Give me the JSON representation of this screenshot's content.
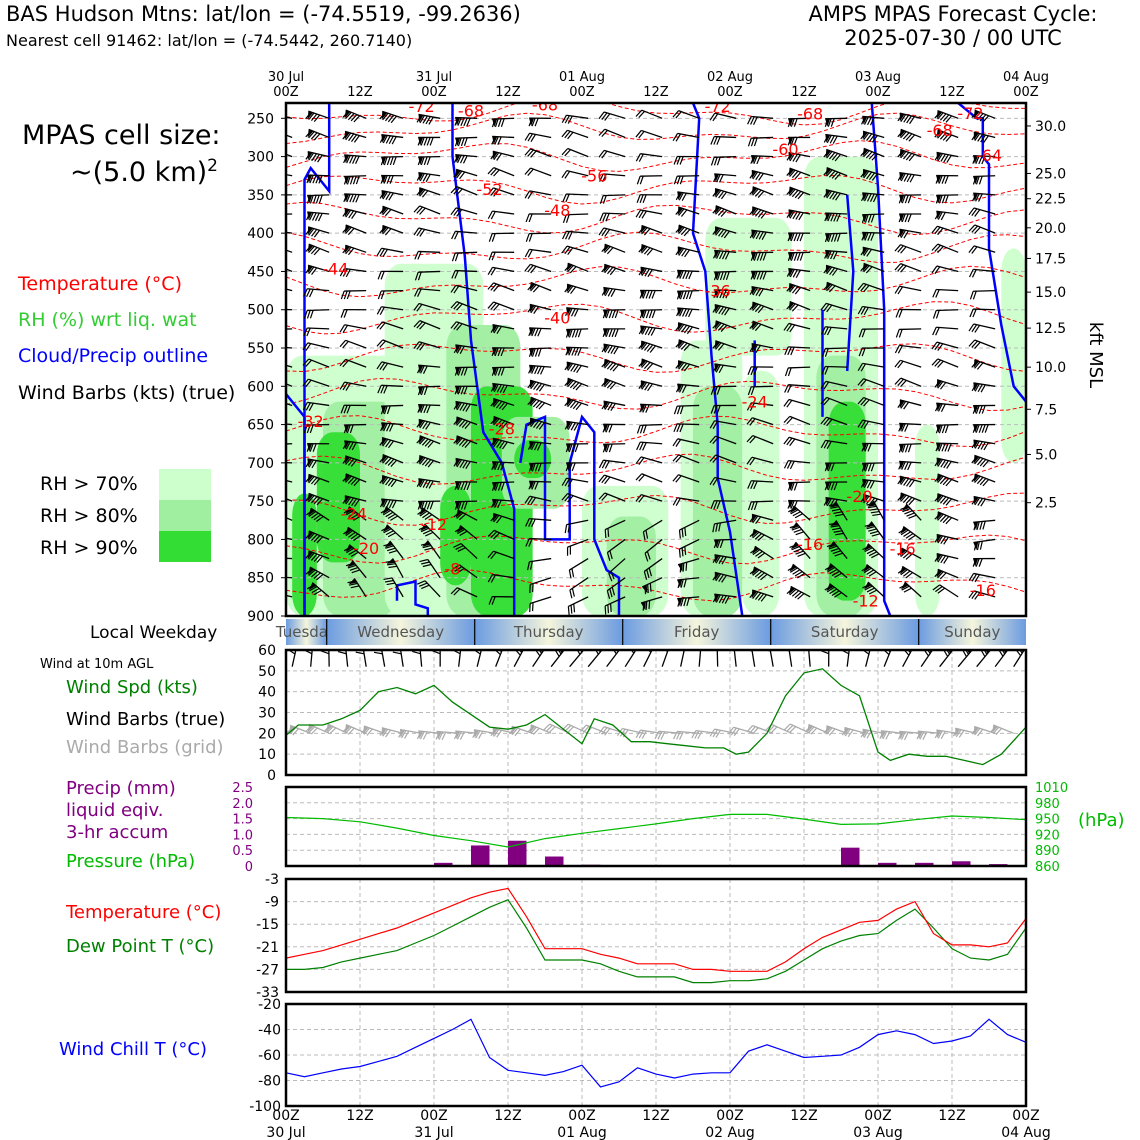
{
  "header": {
    "title_left": "BAS Hudson Mtns: lat/lon = (-74.5519, -99.2636)",
    "subtitle_left": "Nearest cell 91462: lat/lon = (-74.5442, 260.7140)",
    "title_right_1": "AMPS MPAS Forecast Cycle:",
    "title_right_2": "2025-07-30 / 00 UTC"
  },
  "left_panel": {
    "cell_size_1": "MPAS cell size:",
    "cell_size_2": "~(5.0 km)",
    "cell_size_sup": "2",
    "legend_temperature": "Temperature (°C)",
    "legend_rh": "RH (%) wrt liq. wat",
    "legend_cloud": "Cloud/Precip outline",
    "legend_wind": "Wind Barbs (kts) (true)",
    "rh_70": "RH > 70%",
    "rh_80": "RH > 80%",
    "rh_90": "RH > 90%"
  },
  "colors": {
    "temperature": "#ff0000",
    "rh_label": "#33cc33",
    "cloud": "#0000ff",
    "rh70": "#ccffcc",
    "rh80": "#a0eea0",
    "rh90": "#33dd33",
    "wind_speed": "#008000",
    "precip": "#800080",
    "pressure": "#00bb00",
    "dewpoint": "#008000",
    "windchill": "#0000ff",
    "barbs_grid": "#aaaaaa"
  },
  "time_axis": {
    "top_ticks": [
      {
        "l1": "30 Jul",
        "l2": "00Z"
      },
      {
        "l1": "",
        "l2": "12Z"
      },
      {
        "l1": "31 Jul",
        "l2": "00Z"
      },
      {
        "l1": "",
        "l2": "12Z"
      },
      {
        "l1": "01 Aug",
        "l2": "00Z"
      },
      {
        "l1": "",
        "l2": "12Z"
      },
      {
        "l1": "02 Aug",
        "l2": "00Z"
      },
      {
        "l1": "",
        "l2": "12Z"
      },
      {
        "l1": "03 Aug",
        "l2": "00Z"
      },
      {
        "l1": "",
        "l2": "12Z"
      },
      {
        "l1": "04 Aug",
        "l2": "00Z"
      }
    ],
    "bottom_ticks": [
      {
        "l1": "00Z",
        "l2": "30 Jul"
      },
      {
        "l1": "12Z",
        "l2": ""
      },
      {
        "l1": "00Z",
        "l2": "31 Jul"
      },
      {
        "l1": "12Z",
        "l2": ""
      },
      {
        "l1": "00Z",
        "l2": "01 Aug"
      },
      {
        "l1": "12Z",
        "l2": ""
      },
      {
        "l1": "00Z",
        "l2": "02 Aug"
      },
      {
        "l1": "12Z",
        "l2": ""
      },
      {
        "l1": "00Z",
        "l2": "03 Aug"
      },
      {
        "l1": "12Z",
        "l2": ""
      },
      {
        "l1": "00Z",
        "l2": "04 Aug"
      }
    ],
    "weekday_label": "Local Weekday",
    "weekdays": [
      "Tuesday",
      "Wednesday",
      "Thursday",
      "Friday",
      "Saturday",
      "Sunday"
    ]
  },
  "chart_data": [
    {
      "type": "heatmap",
      "name": "cross-section",
      "y_left_label_ticks": [
        "250",
        "300",
        "350",
        "400",
        "450",
        "500",
        "550",
        "600",
        "650",
        "700",
        "750",
        "800",
        "850",
        "900"
      ],
      "y_left_values_hpa": [
        250,
        300,
        350,
        400,
        450,
        500,
        550,
        600,
        650,
        700,
        750,
        800,
        850,
        900
      ],
      "ylim_hpa": [
        900,
        230
      ],
      "y_right_label": "kft MSL",
      "y_right_ticks": [
        {
          "label": "30.0",
          "hpa": 260
        },
        {
          "label": "25.0",
          "hpa": 322
        },
        {
          "label": "22.5",
          "hpa": 355
        },
        {
          "label": "20.0",
          "hpa": 393
        },
        {
          "label": "17.5",
          "hpa": 433
        },
        {
          "label": "15.0",
          "hpa": 477
        },
        {
          "label": "12.5",
          "hpa": 524
        },
        {
          "label": "10.0",
          "hpa": 575
        },
        {
          "label": "7.5",
          "hpa": 630
        },
        {
          "label": "5.0",
          "hpa": 689
        },
        {
          "label": "2.5",
          "hpa": 752
        }
      ],
      "temperature_labels": [
        {
          "text": "-72",
          "hour": 11.0,
          "hpa": 234
        },
        {
          "text": "-68",
          "hour": 15.0,
          "hpa": 240
        },
        {
          "text": "-68",
          "hour": 21.0,
          "hpa": 232
        },
        {
          "text": "-72",
          "hour": 35.0,
          "hpa": 234
        },
        {
          "text": "-68",
          "hour": 42.5,
          "hpa": 244
        },
        {
          "text": "-68",
          "hour": 53.0,
          "hpa": 265
        },
        {
          "text": "-72",
          "hour": 55.5,
          "hpa": 243
        },
        {
          "text": "-60",
          "hour": 40.5,
          "hpa": 290
        },
        {
          "text": "-64",
          "hour": 57.0,
          "hpa": 298
        },
        {
          "text": "-56",
          "hour": 25.0,
          "hpa": 325
        },
        {
          "text": "-52",
          "hour": 16.5,
          "hpa": 342
        },
        {
          "text": "-48",
          "hour": 22.0,
          "hpa": 370
        },
        {
          "text": "-44",
          "hour": 4.0,
          "hpa": 446
        },
        {
          "text": "-36",
          "hour": 35.0,
          "hpa": 475
        },
        {
          "text": "-40",
          "hour": 22.0,
          "hpa": 510
        },
        {
          "text": "-32",
          "hour": 2.0,
          "hpa": 645
        },
        {
          "text": "-24",
          "hour": 38.0,
          "hpa": 620
        },
        {
          "text": "-28",
          "hour": 17.5,
          "hpa": 655
        },
        {
          "text": "-20",
          "hour": 46.5,
          "hpa": 743
        },
        {
          "text": "-24",
          "hour": 5.5,
          "hpa": 766
        },
        {
          "text": "-12",
          "hour": 12.0,
          "hpa": 780
        },
        {
          "text": "-20",
          "hour": 6.5,
          "hpa": 811
        },
        {
          "text": "-16",
          "hour": 42.5,
          "hpa": 806
        },
        {
          "text": "-16",
          "hour": 50.0,
          "hpa": 812
        },
        {
          "text": "-8",
          "hour": 13.5,
          "hpa": 838
        },
        {
          "text": "-16",
          "hour": 56.5,
          "hpa": 866
        },
        {
          "text": "-12",
          "hour": 47.0,
          "hpa": 880
        }
      ]
    },
    {
      "type": "line",
      "name": "wind",
      "title": "Wind at 10m AGL",
      "ylabel_1": "Wind Spd (kts)",
      "ylabel_2": "Wind Barbs (true)",
      "ylabel_3": "Wind Barbs (grid)",
      "ylim": [
        0,
        60
      ],
      "y_ticks": [
        0,
        10,
        20,
        30,
        40,
        50,
        60
      ],
      "x_hours": [
        0,
        1.5,
        3,
        4.5,
        6,
        7.5,
        9,
        10.5,
        12,
        13.5,
        15,
        16.5,
        18,
        19.5,
        21,
        22.5,
        24,
        25.5,
        27,
        28.5,
        30,
        31.5,
        33,
        34.5,
        36,
        37.5,
        39,
        40.5,
        42,
        43.5,
        45,
        46.5,
        48,
        49.5,
        51,
        52.5,
        54,
        55.5,
        57,
        58.5,
        60
      ],
      "x_hours_spd": [
        0,
        1,
        3,
        4.5,
        6,
        7.5,
        9,
        10.5,
        12,
        13.5,
        15,
        16.5,
        18,
        19.5,
        21,
        22.5,
        24,
        25,
        26.5,
        28,
        29.5,
        31,
        32.5,
        34,
        35.5,
        36.5,
        37.5,
        39,
        40.5,
        42,
        43.5,
        45,
        46.5,
        48,
        49,
        50.5,
        52,
        53.5,
        55,
        56.5,
        58,
        60
      ],
      "speed_kts": [
        19,
        24,
        24,
        27,
        31,
        40,
        42,
        39,
        43,
        35,
        29,
        23,
        22,
        24,
        29,
        22,
        15,
        27,
        24,
        16,
        16,
        15,
        14,
        13,
        13,
        10,
        11,
        20,
        38,
        49,
        51,
        43,
        38,
        11,
        7,
        10,
        9,
        9,
        7,
        5,
        10,
        23
      ]
    },
    {
      "type": "bar",
      "name": "precip-pressure",
      "ylabel_1": "Precip (mm)",
      "ylabel_2": "liquid eqiv.",
      "ylabel_3": "3-hr accum",
      "ylabel_4": "Pressure (hPa)",
      "y_right_label": "(hPa)",
      "ylim_precip": [
        0,
        2.5
      ],
      "precip_ticks": [
        "0",
        "0.5",
        "1.0",
        "1.5",
        "2.0",
        "2.5"
      ],
      "pressure_ticks": [
        "860",
        "890",
        "920",
        "950",
        "980",
        "1010"
      ],
      "ylim_pressure": [
        860,
        1010
      ],
      "precip_hours_start": [
        0,
        3,
        6,
        9,
        12,
        15,
        18,
        21,
        24,
        27,
        30,
        33,
        36,
        39,
        42,
        45,
        48,
        51,
        54,
        57
      ],
      "precip_mm": [
        0.02,
        0.02,
        0.03,
        0.02,
        0.1,
        0.65,
        0.8,
        0.3,
        0.04,
        0,
        0,
        0,
        0,
        0,
        0,
        0.58,
        0.1,
        0.1,
        0.15,
        0.06
      ],
      "pressure_hours": [
        0,
        3,
        6,
        9,
        12,
        15,
        18,
        21,
        24,
        27,
        30,
        33,
        36,
        39,
        42,
        45,
        48,
        51,
        54,
        57,
        60
      ],
      "pressure_hpa": [
        952,
        950,
        944,
        932,
        918,
        908,
        896,
        912,
        922,
        931,
        940,
        950,
        958,
        958,
        949,
        939,
        940,
        948,
        955,
        952,
        948
      ]
    },
    {
      "type": "line",
      "name": "temperature-dewpoint",
      "ylabel_1": "Temperature (°C)",
      "ylabel_2": "Dew Point T (°C)",
      "ylim": [
        -33,
        -3
      ],
      "y_ticks": [
        -3,
        -9,
        -15,
        -21,
        -27,
        -33
      ],
      "x_hours": [
        0,
        1.5,
        3,
        4.5,
        6,
        7.5,
        9,
        10.5,
        12,
        13.5,
        15,
        16.5,
        18,
        19.5,
        21,
        22.5,
        24,
        25.5,
        27,
        28.5,
        30,
        31.5,
        33,
        34.5,
        36,
        37.5,
        39,
        40.5,
        42,
        43.5,
        45,
        46.5,
        48,
        49.5,
        51,
        52.5,
        54,
        55.5,
        57,
        58.5,
        60
      ],
      "temperature": [
        -24,
        -23,
        -22,
        -20.5,
        -19,
        -17.5,
        -16,
        -14,
        -12,
        -10,
        -8,
        -6.5,
        -5.5,
        -13,
        -21.5,
        -21.5,
        -21.5,
        -23,
        -24,
        -25.5,
        -25.5,
        -25.5,
        -27,
        -27,
        -27.5,
        -27.5,
        -27.5,
        -25,
        -21.5,
        -18.5,
        -16.5,
        -14.5,
        -14,
        -11,
        -9,
        -17.5,
        -20.5,
        -20.5,
        -21,
        -20,
        -13.5
      ],
      "dewpoint": [
        -27,
        -27,
        -26.5,
        -25,
        -24,
        -23,
        -22,
        -20,
        -18,
        -15.5,
        -13,
        -10.5,
        -8.5,
        -16,
        -24.5,
        -24.5,
        -24.5,
        -25.5,
        -27.5,
        -29,
        -29,
        -29,
        -30.5,
        -30.5,
        -30,
        -30,
        -29.5,
        -27.5,
        -24.5,
        -21.5,
        -19.5,
        -18,
        -17.5,
        -14,
        -11,
        -16,
        -21.5,
        -24,
        -24.5,
        -23,
        -16
      ]
    },
    {
      "type": "line",
      "name": "wind-chill",
      "ylabel": "Wind Chill T (°C)",
      "ylim": [
        -100,
        -20
      ],
      "y_ticks": [
        -20,
        -40,
        -60,
        -80,
        -100
      ],
      "x_hours": [
        0,
        1.5,
        3,
        4.5,
        6,
        7.5,
        9,
        10.5,
        12,
        13.5,
        15,
        16.5,
        18,
        19.5,
        21,
        22.5,
        24,
        25.5,
        27,
        28.5,
        30,
        31.5,
        33,
        34.5,
        36,
        37.5,
        39,
        40.5,
        42,
        43.5,
        45,
        46.5,
        48,
        49.5,
        51,
        52.5,
        54,
        55.5,
        57,
        58.5,
        60
      ],
      "wind_chill": [
        -74,
        -77,
        -74,
        -71,
        -69,
        -65,
        -61,
        -54,
        -47,
        -40,
        -32,
        -62,
        -72,
        -74,
        -76,
        -73,
        -68,
        -85,
        -81,
        -70,
        -75,
        -78,
        -75,
        -74,
        -74,
        -57,
        -52,
        -57,
        -62,
        -61,
        -60,
        -54,
        -44,
        -41,
        -44,
        -51,
        -49,
        -45,
        -32,
        -44,
        -50
      ]
    }
  ]
}
